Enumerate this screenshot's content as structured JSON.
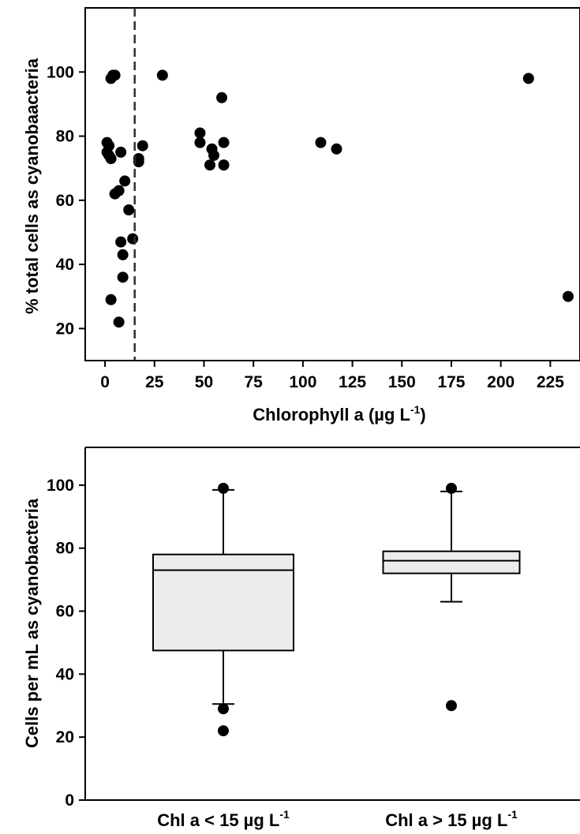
{
  "chart_data": [
    {
      "type": "scatter",
      "title": "",
      "xlabel": "Chlorophyll a (µg L",
      "xlabel_sup": "-1",
      "xlabel_end": ")",
      "ylabel": "% total cells as cyanobaacteria",
      "xlim": [
        -10,
        240
      ],
      "ylim": [
        10,
        120
      ],
      "xticks": [
        0,
        25,
        50,
        75,
        100,
        125,
        150,
        175,
        200,
        225
      ],
      "yticks": [
        20,
        40,
        60,
        80,
        100
      ],
      "threshold_line": {
        "x": 15,
        "style": "dashed",
        "color": "#3a2a2a"
      },
      "grid": false,
      "points": [
        [
          3,
          98
        ],
        [
          4,
          99
        ],
        [
          5,
          99
        ],
        [
          1,
          78
        ],
        [
          2,
          77
        ],
        [
          1,
          75
        ],
        [
          2,
          74
        ],
        [
          3,
          73
        ],
        [
          8,
          75
        ],
        [
          10,
          66
        ],
        [
          7,
          63
        ],
        [
          5,
          62
        ],
        [
          12,
          57
        ],
        [
          8,
          47
        ],
        [
          14,
          48
        ],
        [
          9,
          43
        ],
        [
          9,
          36
        ],
        [
          3,
          29
        ],
        [
          7,
          22
        ],
        [
          17,
          73
        ],
        [
          19,
          77
        ],
        [
          17,
          72
        ],
        [
          29,
          99
        ],
        [
          48,
          81
        ],
        [
          48,
          78
        ],
        [
          54,
          76
        ],
        [
          55,
          74
        ],
        [
          53,
          71
        ],
        [
          60,
          78
        ],
        [
          60,
          71
        ],
        [
          59,
          92
        ],
        [
          109,
          78
        ],
        [
          117,
          76
        ],
        [
          214,
          98
        ],
        [
          234,
          30
        ]
      ]
    },
    {
      "type": "box",
      "title": "",
      "xlabel": "",
      "ylabel": "Cells per mL as cyanobacteria",
      "ylim": [
        0,
        112
      ],
      "yticks": [
        0,
        20,
        40,
        60,
        80,
        100
      ],
      "categories": [
        {
          "pre": "Chl a < 15 µg L",
          "sup": "-1"
        },
        {
          "pre": "Chl a > 15 µg L",
          "sup": "-1"
        }
      ],
      "boxes": [
        {
          "whisker_low": 30.5,
          "q1": 47.5,
          "median": 73,
          "q3": 78,
          "whisker_high": 98.5,
          "outliers": [
            99,
            29,
            22
          ]
        },
        {
          "whisker_low": 63,
          "q1": 72,
          "median": 76,
          "q3": 79,
          "whisker_high": 98,
          "outliers": [
            99,
            30
          ]
        }
      ],
      "box_fill": "#ececec"
    }
  ]
}
